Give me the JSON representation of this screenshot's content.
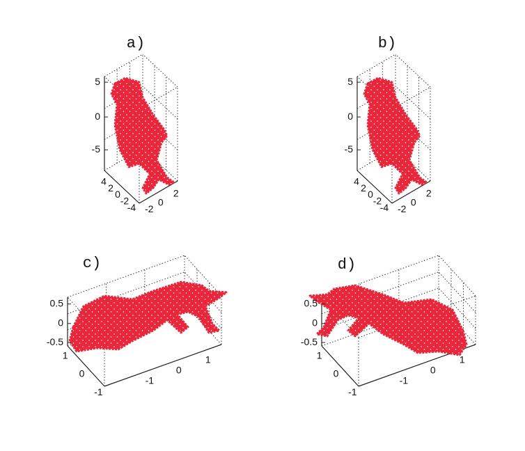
{
  "panels": [
    {
      "label": "a)",
      "z_ticks": [
        "5",
        "0",
        "-5"
      ],
      "y_ticks": [
        "4",
        "2",
        "0",
        "-2",
        "-4"
      ],
      "x_ticks": [
        "-2",
        "0",
        "2"
      ]
    },
    {
      "label": "b)",
      "z_ticks": [
        "5",
        "0",
        "-5"
      ],
      "y_ticks": [
        "4",
        "2",
        "0",
        "-2",
        "-4"
      ],
      "x_ticks": [
        "-2",
        "0",
        "2"
      ]
    },
    {
      "label": "c)",
      "z_ticks": [
        "0.5",
        "0",
        "-0.5"
      ],
      "y_ticks": [
        "1",
        "0",
        "-1"
      ],
      "x_ticks": [
        "-1",
        "0",
        "1"
      ]
    },
    {
      "label": "d)",
      "z_ticks": [
        "0.5",
        "0",
        "-0.5"
      ],
      "y_ticks": [
        "1",
        "0",
        "-1"
      ],
      "x_ticks": [
        "-1",
        "0",
        "1"
      ]
    }
  ]
}
